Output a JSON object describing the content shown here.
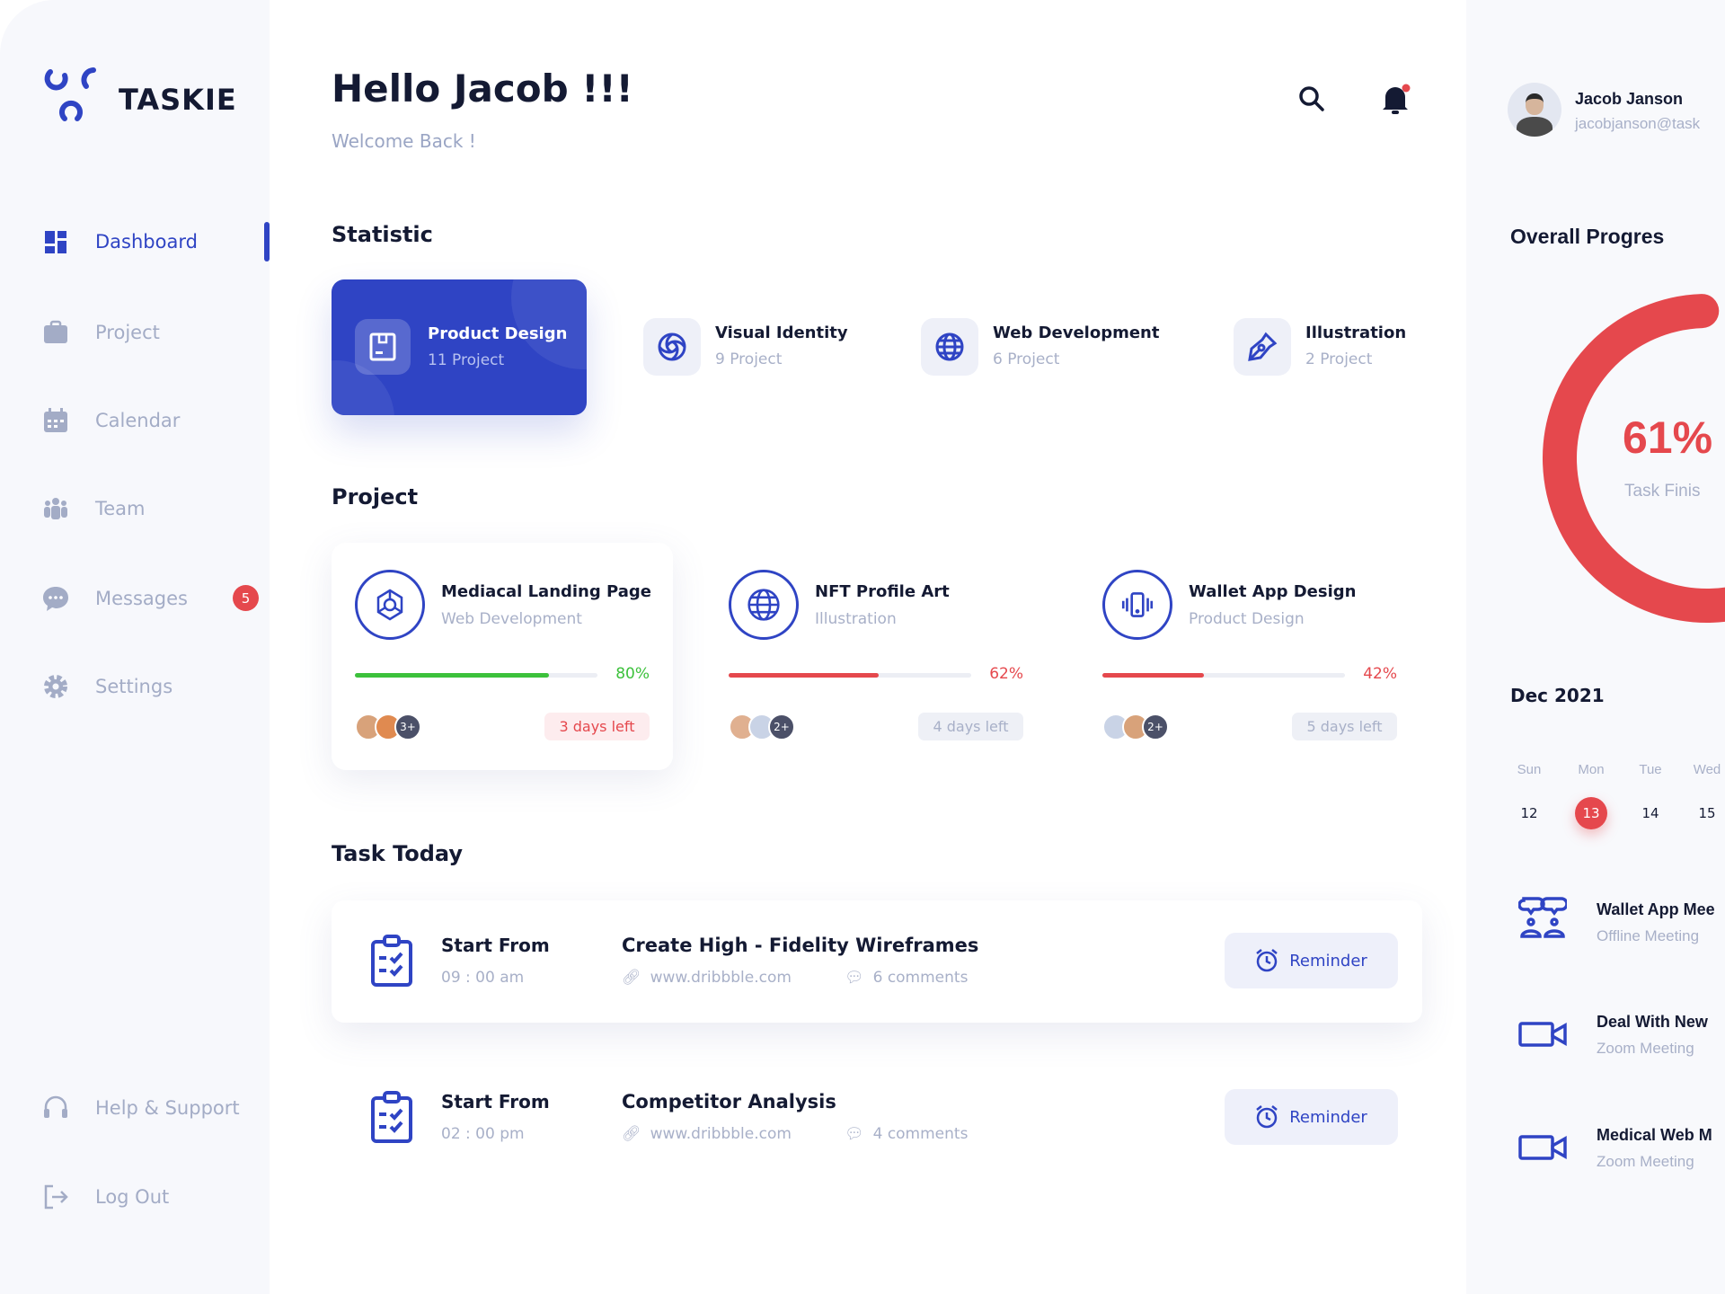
{
  "brand": {
    "name": "TASKIE",
    "color": "#2f44c4"
  },
  "sidebar": {
    "items": [
      {
        "label": "Dashboard",
        "icon": "dashboard-icon",
        "active": true
      },
      {
        "label": "Project",
        "icon": "briefcase-icon"
      },
      {
        "label": "Calendar",
        "icon": "calendar-icon"
      },
      {
        "label": "Team",
        "icon": "team-icon"
      },
      {
        "label": "Messages",
        "icon": "chat-icon",
        "badge": "5"
      },
      {
        "label": "Settings",
        "icon": "gear-icon"
      }
    ],
    "bottom": [
      {
        "label": "Help & Support",
        "icon": "headset-icon"
      },
      {
        "label": "Log Out",
        "icon": "logout-icon"
      }
    ]
  },
  "header": {
    "greeting": "Hello Jacob !!!",
    "subtitle": "Welcome Back !"
  },
  "user": {
    "name": "Jacob Janson",
    "email": "jacobjanson@task"
  },
  "statistic": {
    "heading": "Statistic",
    "items": [
      {
        "title": "Product Design",
        "count": "11 Project",
        "icon": "box-icon",
        "active": true
      },
      {
        "title": "Visual Identity",
        "count": "9 Project",
        "icon": "spiral-icon"
      },
      {
        "title": "Web Development",
        "count": "6 Project",
        "icon": "globe-icon"
      },
      {
        "title": "Illustration",
        "count": "2 Project",
        "icon": "pen-tool-icon"
      }
    ]
  },
  "projects": {
    "heading": "Project",
    "items": [
      {
        "title": "Mediacal Landing Page",
        "category": "Web Development",
        "progress": 80,
        "progress_label": "80%",
        "color": "#3cc13b",
        "extra": "3+",
        "days_left": "3 days left",
        "urgent": true
      },
      {
        "title": "NFT Profile Art",
        "category": "Illustration",
        "progress": 62,
        "progress_label": "62%",
        "color": "#e5484d",
        "extra": "2+",
        "days_left": "4 days left"
      },
      {
        "title": "Wallet App Design",
        "category": "Product Design",
        "progress": 42,
        "progress_label": "42%",
        "color": "#e5484d",
        "extra": "2+",
        "days_left": "5 days left"
      }
    ]
  },
  "tasks": {
    "heading": "Task Today",
    "items": [
      {
        "start_label": "Start From",
        "time": "09 : 00 am",
        "title": "Create High - Fidelity Wireframes",
        "link": "www.dribbble.com",
        "comments": "6 comments",
        "button": "Reminder"
      },
      {
        "start_label": "Start From",
        "time": "02 : 00 pm",
        "title": "Competitor Analysis",
        "link": "www.dribbble.com",
        "comments": "4 comments",
        "button": "Reminder"
      }
    ]
  },
  "overall": {
    "heading": "Overall Progres",
    "percent": 61,
    "percent_label": "61%",
    "caption": "Task Finis",
    "color": "#e5484d"
  },
  "calendar": {
    "month": "Dec 2021",
    "days": [
      {
        "name": "Sun",
        "date": "12"
      },
      {
        "name": "Mon",
        "date": "13",
        "selected": true
      },
      {
        "name": "Tue",
        "date": "14"
      },
      {
        "name": "Wed",
        "date": "15"
      }
    ]
  },
  "events": [
    {
      "title": "Wallet App Mee",
      "type": "Offline Meeting",
      "icon": "meeting-icon"
    },
    {
      "title": "Deal With New",
      "type": "Zoom Meeting",
      "icon": "video-icon"
    },
    {
      "title": "Medical Web M",
      "type": "Zoom Meeting",
      "icon": "video-icon"
    }
  ]
}
